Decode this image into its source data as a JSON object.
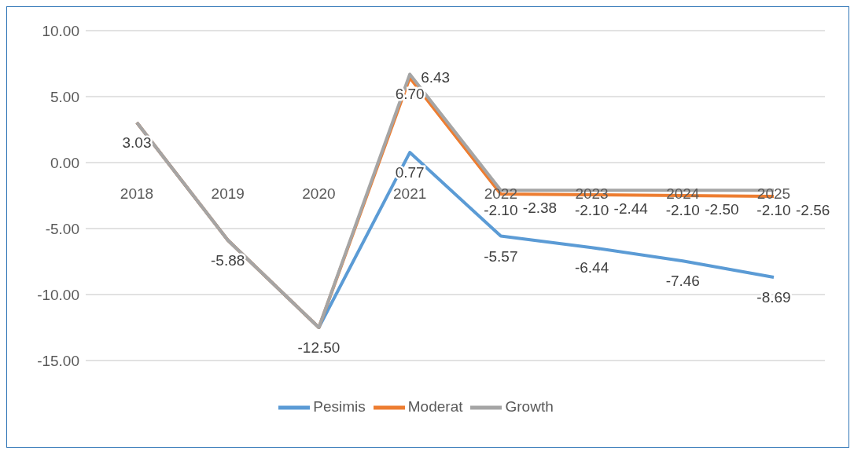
{
  "chart_data": {
    "type": "line",
    "categories": [
      "2018",
      "2019",
      "2020",
      "2021",
      "2022",
      "2023",
      "2024",
      "2025"
    ],
    "series": [
      {
        "name": "Pesimis",
        "color": "#5b9bd5",
        "values": [
          3.03,
          -5.88,
          -12.5,
          0.77,
          -5.57,
          -6.44,
          -7.46,
          -8.69
        ],
        "value_labels": [
          "3.03",
          "-5.88",
          "-12.50",
          "0.77",
          "-5.57",
          "-6.44",
          "-7.46",
          "-8.69"
        ]
      },
      {
        "name": "Moderat",
        "color": "#ed7d31",
        "values": [
          3.03,
          -5.88,
          -12.5,
          6.43,
          -2.38,
          -2.44,
          -2.5,
          -2.56
        ],
        "value_labels": [
          null,
          null,
          null,
          "6.43",
          "-2.38",
          "-2.44",
          "-2.50",
          "-2.56"
        ]
      },
      {
        "name": "Growth",
        "color": "#a5a5a5",
        "values": [
          3.03,
          -5.88,
          -12.5,
          6.7,
          -2.1,
          -2.1,
          -2.1,
          -2.1
        ],
        "value_labels": [
          null,
          null,
          null,
          "6.70",
          "-2.10",
          "-2.10",
          "-2.10",
          "-2.10"
        ]
      }
    ],
    "ylim": [
      -15,
      10
    ],
    "yticks": [
      {
        "value": -15,
        "label": "-15.00"
      },
      {
        "value": -10,
        "label": "-10.00"
      },
      {
        "value": -5,
        "label": "-5.00"
      },
      {
        "value": 0,
        "label": "0.00"
      },
      {
        "value": 5,
        "label": "5.00"
      },
      {
        "value": 10,
        "label": "10.00"
      }
    ],
    "grid": "y",
    "legend": "bottom",
    "marker": "none",
    "line_style": "solid"
  }
}
